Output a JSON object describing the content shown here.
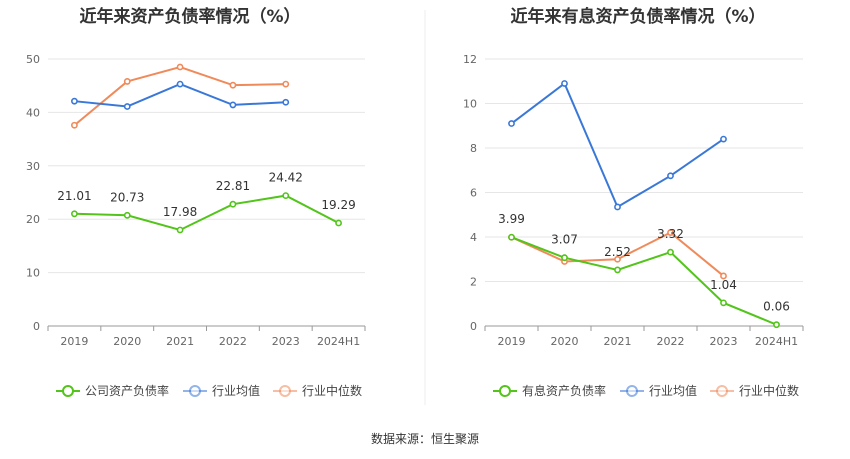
{
  "chart_data": [
    {
      "type": "line",
      "title": "近年来资产负债率情况（%）",
      "categories": [
        "2019",
        "2020",
        "2021",
        "2022",
        "2023",
        "2024H1"
      ],
      "ylim": [
        0,
        50
      ],
      "yticks": [
        0,
        10,
        20,
        30,
        40,
        50
      ],
      "grid": true,
      "legend_position": "bottom",
      "series": [
        {
          "name": "公司资产负债率",
          "color": "#52c41a",
          "values": [
            21.01,
            20.73,
            17.98,
            22.81,
            24.42,
            19.29
          ],
          "labels": [
            "21.01",
            "20.73",
            "17.98",
            "22.81",
            "24.42",
            "19.29"
          ]
        },
        {
          "name": "行业均值",
          "color": "#3a78d8",
          "values": [
            42.1,
            41.1,
            45.3,
            41.4,
            41.9,
            null
          ]
        },
        {
          "name": "行业中位数",
          "color": "#f08a5a",
          "values": [
            37.6,
            45.8,
            48.5,
            45.1,
            45.3,
            null
          ]
        }
      ]
    },
    {
      "type": "line",
      "title": "近年来有息资产负债率情况（%）",
      "categories": [
        "2019",
        "2020",
        "2021",
        "2022",
        "2023",
        "2024H1"
      ],
      "ylim": [
        0,
        12
      ],
      "yticks": [
        0,
        2,
        4,
        6,
        8,
        10,
        12
      ],
      "grid": true,
      "legend_position": "bottom",
      "series": [
        {
          "name": "有息资产负债率",
          "color": "#52c41a",
          "values": [
            3.99,
            3.07,
            2.52,
            3.32,
            1.04,
            0.06
          ],
          "labels": [
            "3.99",
            "3.07",
            "2.52",
            "3.32",
            "1.04",
            "0.06"
          ]
        },
        {
          "name": "行业均值",
          "color": "#3a78d8",
          "values": [
            9.1,
            10.9,
            5.35,
            6.75,
            8.4,
            null
          ]
        },
        {
          "name": "行业中位数",
          "color": "#f08a5a",
          "values": [
            3.99,
            2.9,
            3.0,
            4.2,
            2.25,
            null
          ]
        }
      ]
    }
  ],
  "footer": {
    "source": "数据来源：恒生聚源"
  }
}
